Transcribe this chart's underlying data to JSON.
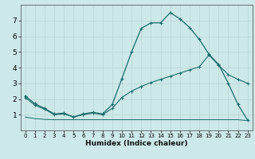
{
  "xlabel": "Humidex (Indice chaleur)",
  "bg_color": "#cce8e8",
  "line_color": "#1a6b6b",
  "grid_color": "#b8d4d4",
  "xlim": [
    -0.5,
    23.5
  ],
  "ylim": [
    0,
    8
  ],
  "yticks": [
    1,
    2,
    3,
    4,
    5,
    6,
    7
  ],
  "xticks": [
    0,
    1,
    2,
    3,
    4,
    5,
    6,
    7,
    8,
    9,
    10,
    11,
    12,
    13,
    14,
    15,
    16,
    17,
    18,
    19,
    20,
    21,
    22,
    23
  ],
  "line1_x": [
    0,
    1,
    2,
    3,
    4,
    5,
    6,
    7,
    8,
    9,
    10,
    11,
    12,
    13,
    14,
    15,
    16,
    17,
    18,
    19,
    20,
    21,
    22,
    23
  ],
  "line1_y": [
    2.2,
    1.7,
    1.4,
    1.05,
    1.1,
    0.85,
    1.05,
    1.15,
    1.05,
    1.65,
    3.3,
    5.0,
    6.5,
    6.85,
    6.85,
    7.5,
    7.1,
    6.55,
    5.8,
    4.85,
    4.2,
    3.0,
    1.65,
    0.65
  ],
  "line2_x": [
    0,
    1,
    2,
    3,
    4,
    5,
    6,
    7,
    8,
    9,
    10,
    11,
    12,
    13,
    14,
    15,
    16,
    17,
    18,
    19,
    20,
    21,
    22,
    23
  ],
  "line2_y": [
    2.1,
    1.6,
    1.35,
    1.0,
    1.05,
    0.85,
    1.0,
    1.1,
    1.0,
    1.4,
    2.1,
    2.5,
    2.8,
    3.05,
    3.25,
    3.45,
    3.65,
    3.85,
    4.05,
    4.8,
    4.15,
    3.55,
    3.25,
    3.0
  ],
  "line3_x": [
    0,
    1,
    2,
    3,
    4,
    5,
    6,
    7,
    8,
    9,
    10,
    11,
    12,
    13,
    14,
    15,
    16,
    17,
    18,
    19,
    20,
    21,
    22,
    23
  ],
  "line3_y": [
    0.85,
    0.75,
    0.7,
    0.68,
    0.68,
    0.68,
    0.68,
    0.68,
    0.68,
    0.68,
    0.68,
    0.68,
    0.68,
    0.68,
    0.68,
    0.68,
    0.68,
    0.68,
    0.68,
    0.68,
    0.68,
    0.68,
    0.68,
    0.62
  ]
}
